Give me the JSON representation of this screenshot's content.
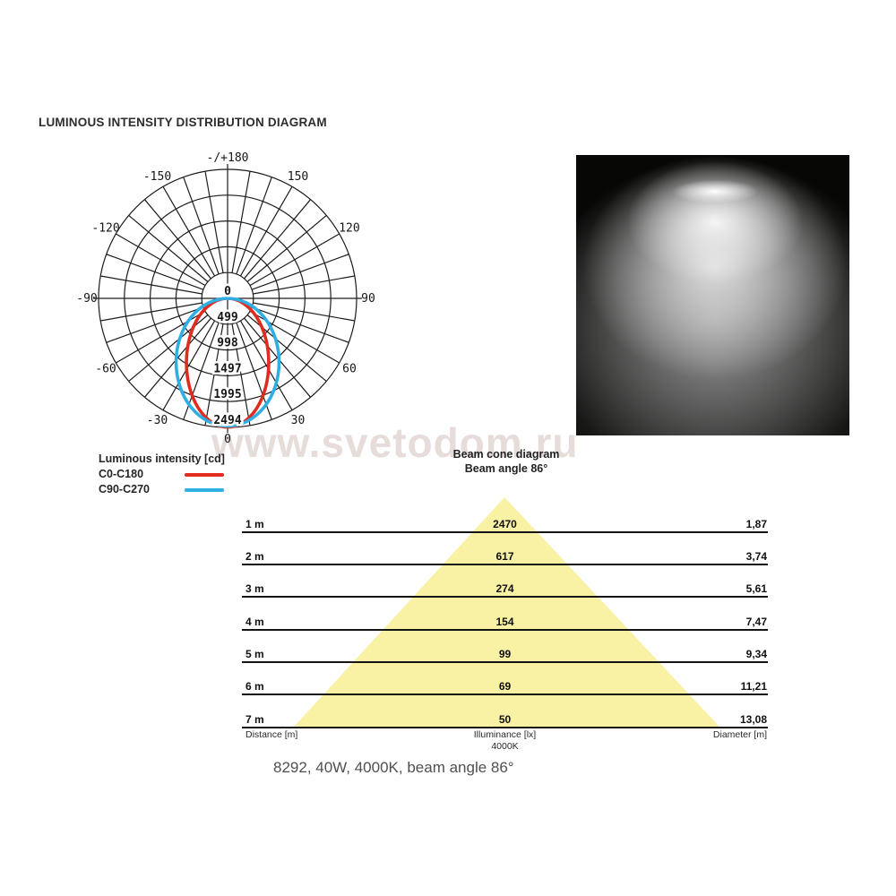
{
  "title": "LUMINOUS INTENSITY DISTRIBUTION DIAGRAM",
  "watermark": "www.svetodom.ru",
  "caption": "8292, 40W, 4000K, beam angle 86°",
  "colors": {
    "c0_c180": "#e02b20",
    "c90_c270": "#2faee4",
    "cone_fill": "#f9f1a3",
    "grid": "#1c1c1c",
    "watermark": "#e6dcda"
  },
  "chart_data": [
    {
      "type": "polar-intensity",
      "legend_title": "Luminous intensity [cd]",
      "ring_values": [
        "0",
        "499",
        "998",
        "1497",
        "1995",
        "2494"
      ],
      "angle_ticks": [
        {
          "deg": 180,
          "label": "-/+180"
        },
        {
          "deg": -150,
          "label": "-150"
        },
        {
          "deg": 150,
          "label": "150"
        },
        {
          "deg": -120,
          "label": "-120"
        },
        {
          "deg": 120,
          "label": "120"
        },
        {
          "deg": -90,
          "label": "-90"
        },
        {
          "deg": 90,
          "label": "90"
        },
        {
          "deg": -60,
          "label": "-60"
        },
        {
          "deg": 60,
          "label": "60"
        },
        {
          "deg": -30,
          "label": "-30"
        },
        {
          "deg": 30,
          "label": "30"
        },
        {
          "deg": 0,
          "label": "0"
        }
      ],
      "spoke_step_deg": 10,
      "series": [
        {
          "name": "C0-C180",
          "color": "#e02b20",
          "max_cd": 2470,
          "rx_frac": 0.319,
          "ry_frac": 0.499
        },
        {
          "name": "C90-C270",
          "color": "#2faee4",
          "max_cd": 2470,
          "rx_frac": 0.399,
          "ry_frac": 0.495
        }
      ]
    },
    {
      "type": "table",
      "title": "Beam cone diagram",
      "subtitle": "Beam angle 86°",
      "columns": [
        "Distance [m]",
        "Illuminance [lx]",
        "Diameter [m]"
      ],
      "color_note": "4000K",
      "rows": [
        {
          "distance": "1 m",
          "illuminance": "2470",
          "diameter": "1,87"
        },
        {
          "distance": "2 m",
          "illuminance": "617",
          "diameter": "3,74"
        },
        {
          "distance": "3 m",
          "illuminance": "274",
          "diameter": "5,61"
        },
        {
          "distance": "4 m",
          "illuminance": "154",
          "diameter": "7,47"
        },
        {
          "distance": "5 m",
          "illuminance": "99",
          "diameter": "9,34"
        },
        {
          "distance": "6 m",
          "illuminance": "69",
          "diameter": "11,21"
        },
        {
          "distance": "7 m",
          "illuminance": "50",
          "diameter": "13,08"
        }
      ]
    }
  ]
}
